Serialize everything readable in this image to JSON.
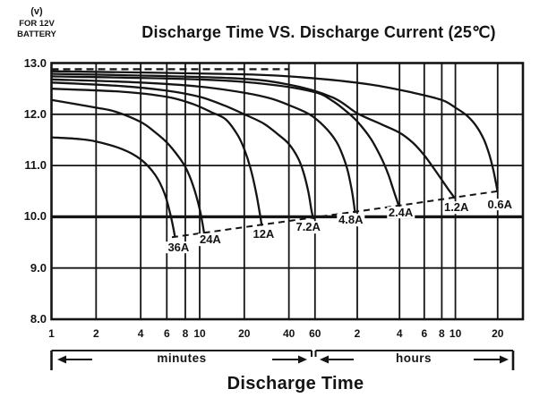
{
  "header": {
    "title": "Discharge Time VS. Discharge Current (25℃)",
    "y_axis_unit": {
      "line1": "(v)",
      "line2": "FOR 12V",
      "line3": "BATTERY"
    }
  },
  "footer": {
    "minutes_label": "minutes",
    "hours_label": "hours",
    "axis_title": "Discharge Time"
  },
  "chart_data": {
    "type": "line",
    "title": "Discharge Time VS. Discharge Current (25℃)",
    "xlabel": "Discharge Time",
    "ylabel": "(v) FOR 12V BATTERY",
    "x_scale": "piecewise-log: minutes 1-60, then hours 1-20",
    "grid": "on",
    "line_color": "#141414",
    "y_axis": {
      "min": 8.0,
      "max": 13.0,
      "ticks": [
        {
          "v": 13.0,
          "label": "13.0"
        },
        {
          "v": 12.0,
          "label": "12.0"
        },
        {
          "v": 11.0,
          "label": "11.0"
        },
        {
          "v": 10.0,
          "label": "10.0"
        },
        {
          "v": 9.0,
          "label": "9.0"
        },
        {
          "v": 8.0,
          "label": "8.0"
        }
      ],
      "emphasized_gridline_v": 10.0
    },
    "x_axis": {
      "minutes_ticks": [
        {
          "t": 1,
          "label": "1"
        },
        {
          "t": 2,
          "label": "2"
        },
        {
          "t": 4,
          "label": "4"
        },
        {
          "t": 6,
          "label": "6"
        },
        {
          "t": 8,
          "label": "8"
        },
        {
          "t": 10,
          "label": "10"
        },
        {
          "t": 20,
          "label": "20"
        },
        {
          "t": 40,
          "label": "40"
        },
        {
          "t": 60,
          "label": "60"
        }
      ],
      "hours_ticks": [
        {
          "t": 120,
          "label": "2"
        },
        {
          "t": 240,
          "label": "4"
        },
        {
          "t": 360,
          "label": "6"
        },
        {
          "t": 480,
          "label": "8"
        },
        {
          "t": 600,
          "label": "10"
        },
        {
          "t": 1200,
          "label": "20"
        }
      ]
    },
    "series": [
      {
        "name": "36A",
        "label": "36A",
        "label_anchor": {
          "t": 7.2,
          "v": 9.4
        },
        "points": [
          [
            1,
            11.55
          ],
          [
            1.5,
            11.52
          ],
          [
            2,
            11.47
          ],
          [
            3,
            11.32
          ],
          [
            4,
            11.12
          ],
          [
            5,
            10.82
          ],
          [
            5.8,
            10.45
          ],
          [
            6.4,
            10.0
          ],
          [
            6.8,
            9.62
          ]
        ]
      },
      {
        "name": "24A",
        "label": "24A",
        "label_anchor": {
          "t": 11.8,
          "v": 9.55
        },
        "points": [
          [
            1,
            12.28
          ],
          [
            2,
            12.13
          ],
          [
            2.7,
            12.05
          ],
          [
            4,
            11.85
          ],
          [
            5,
            11.65
          ],
          [
            6,
            11.45
          ],
          [
            7,
            11.22
          ],
          [
            8,
            10.97
          ],
          [
            9,
            10.62
          ],
          [
            10,
            10.15
          ],
          [
            10.7,
            9.69
          ]
        ]
      },
      {
        "name": "12A",
        "label": "12A",
        "label_anchor": {
          "t": 27,
          "v": 9.66
        },
        "points": [
          [
            1,
            12.5
          ],
          [
            3,
            12.44
          ],
          [
            6,
            12.34
          ],
          [
            9,
            12.2
          ],
          [
            12,
            12.04
          ],
          [
            15,
            11.9
          ],
          [
            18,
            11.6
          ],
          [
            20,
            11.32
          ],
          [
            22,
            10.95
          ],
          [
            24,
            10.48
          ],
          [
            25.5,
            10.05
          ],
          [
            26.2,
            9.84
          ]
        ]
      },
      {
        "name": "7.2A",
        "label": "7.2A",
        "label_anchor": {
          "t": 54,
          "v": 9.8
        },
        "points": [
          [
            1,
            12.62
          ],
          [
            3,
            12.55
          ],
          [
            6,
            12.46
          ],
          [
            10,
            12.34
          ],
          [
            15,
            12.16
          ],
          [
            20,
            12.0
          ],
          [
            27,
            11.82
          ],
          [
            34,
            11.6
          ],
          [
            40,
            11.42
          ],
          [
            46,
            11.15
          ],
          [
            50,
            10.88
          ],
          [
            54,
            10.5
          ],
          [
            57,
            10.1
          ],
          [
            58.5,
            9.97
          ]
        ]
      },
      {
        "name": "4.8A",
        "label": "4.8A",
        "label_anchor": {
          "t": 108,
          "v": 9.93
        },
        "points": [
          [
            1,
            12.68
          ],
          [
            4,
            12.62
          ],
          [
            10,
            12.54
          ],
          [
            20,
            12.42
          ],
          [
            30,
            12.31
          ],
          [
            40,
            12.18
          ],
          [
            55,
            12.0
          ],
          [
            70,
            11.76
          ],
          [
            85,
            11.47
          ],
          [
            95,
            11.18
          ],
          [
            103,
            10.88
          ],
          [
            110,
            10.5
          ],
          [
            114,
            10.22
          ],
          [
            115.5,
            10.09
          ]
        ]
      },
      {
        "name": "2.4A",
        "label": "2.4A",
        "label_anchor": {
          "t": 245,
          "v": 10.08
        },
        "points": [
          [
            1,
            12.74
          ],
          [
            10,
            12.68
          ],
          [
            30,
            12.58
          ],
          [
            60,
            12.43
          ],
          [
            80,
            12.26
          ],
          [
            100,
            12.06
          ],
          [
            120,
            11.86
          ],
          [
            150,
            11.52
          ],
          [
            180,
            11.12
          ],
          [
            200,
            10.82
          ],
          [
            215,
            10.56
          ],
          [
            228,
            10.35
          ],
          [
            236,
            10.23
          ]
        ]
      },
      {
        "name": "1.2A",
        "label": "1.2A",
        "label_anchor": {
          "t": 610,
          "v": 10.18
        },
        "points": [
          [
            1,
            12.79
          ],
          [
            15,
            12.71
          ],
          [
            40,
            12.58
          ],
          [
            80,
            12.33
          ],
          [
            120,
            12.02
          ],
          [
            180,
            11.8
          ],
          [
            240,
            11.64
          ],
          [
            300,
            11.44
          ],
          [
            360,
            11.2
          ],
          [
            420,
            10.95
          ],
          [
            480,
            10.72
          ],
          [
            530,
            10.55
          ],
          [
            570,
            10.43
          ],
          [
            592,
            10.37
          ]
        ]
      },
      {
        "name": "0.6A",
        "label": "0.6A",
        "label_anchor": {
          "t": 1245,
          "v": 10.24
        },
        "points": [
          [
            1,
            12.84
          ],
          [
            20,
            12.78
          ],
          [
            60,
            12.7
          ],
          [
            150,
            12.58
          ],
          [
            300,
            12.42
          ],
          [
            480,
            12.28
          ],
          [
            600,
            12.13
          ],
          [
            720,
            11.98
          ],
          [
            840,
            11.78
          ],
          [
            960,
            11.5
          ],
          [
            1050,
            11.2
          ],
          [
            1120,
            10.9
          ],
          [
            1170,
            10.64
          ],
          [
            1195,
            10.5
          ]
        ]
      }
    ],
    "cutoff_dashed_line": {
      "comment": "end-of-discharge dashed guide through curve endpoints",
      "points": [
        [
          6.5,
          9.6
        ],
        [
          60,
          9.99
        ],
        [
          240,
          10.22
        ],
        [
          600,
          10.38
        ],
        [
          1200,
          10.5
        ]
      ]
    },
    "top_dashed_line": {
      "v": 12.88,
      "t_start": 1,
      "t_end": 40
    }
  }
}
